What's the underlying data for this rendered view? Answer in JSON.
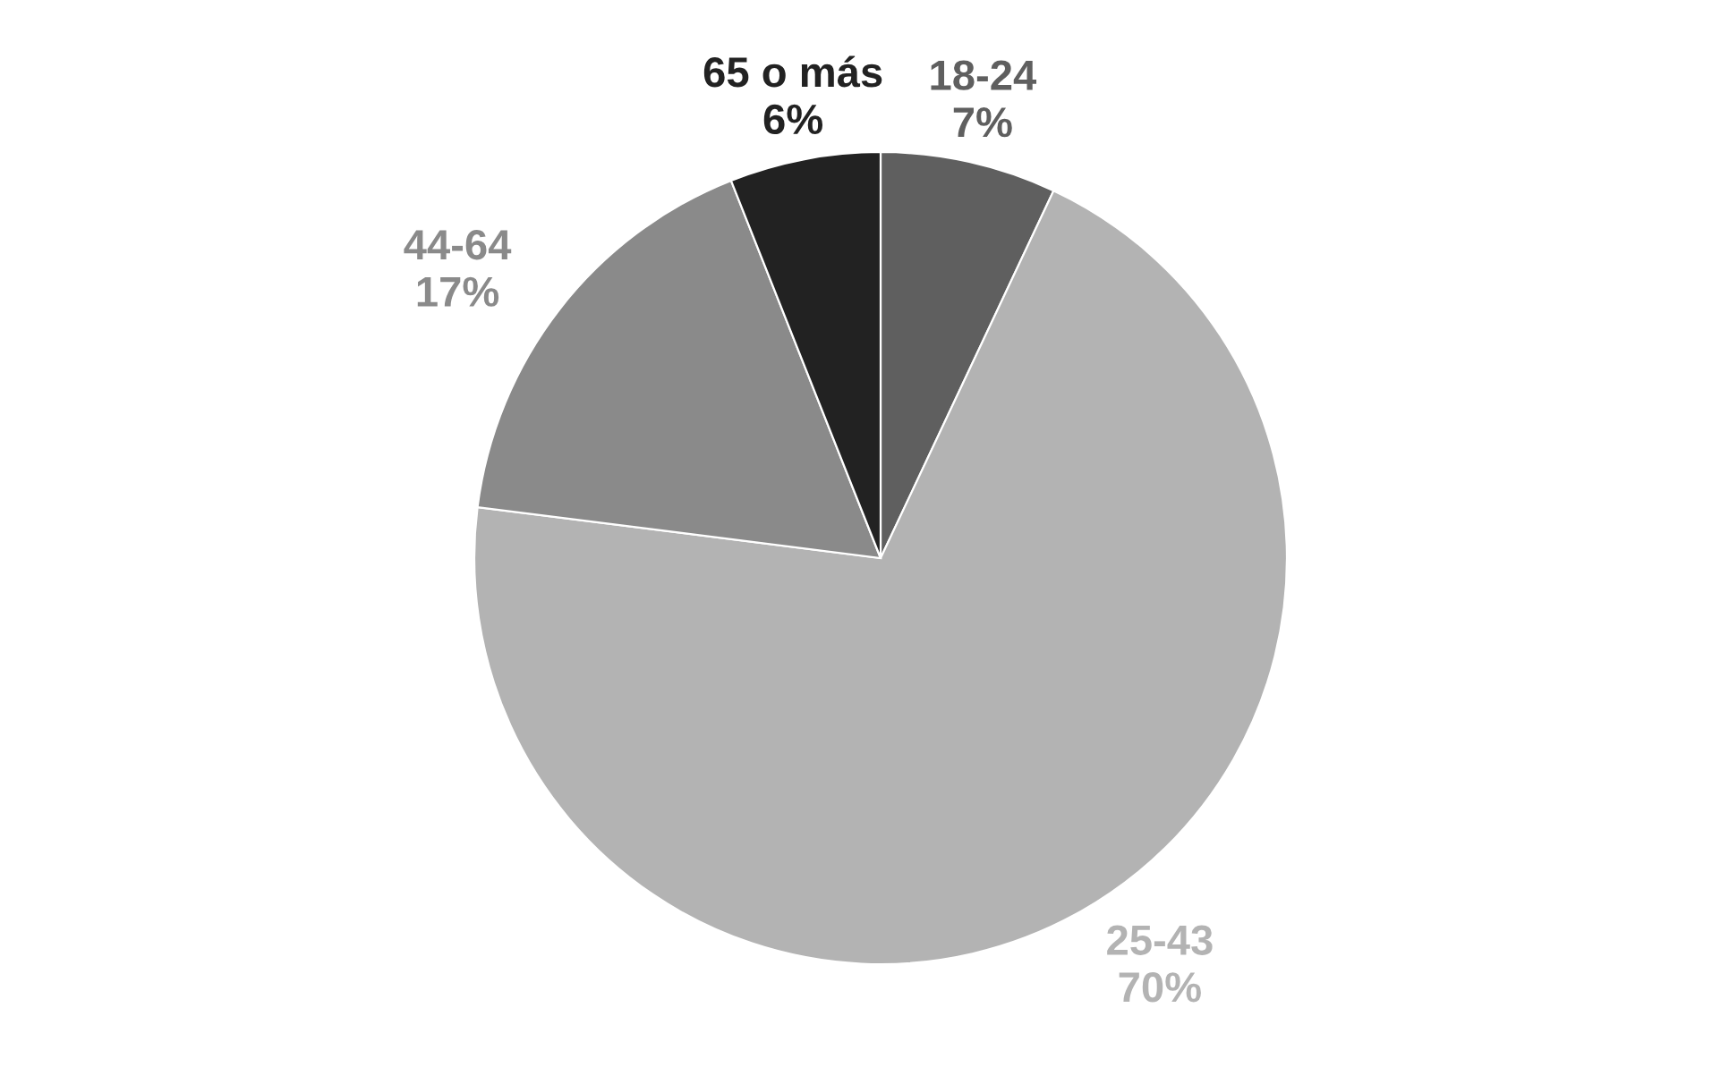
{
  "chart_data": {
    "type": "pie",
    "categories": [
      "18-24",
      "25-43",
      "44-64",
      "65 o más"
    ],
    "values": [
      7,
      70,
      17,
      6
    ],
    "value_labels": [
      "7%",
      "70%",
      "17%",
      "6%"
    ],
    "colors": [
      "#5f5f5f",
      "#b3b3b3",
      "#8a8a8a",
      "#222222"
    ]
  }
}
